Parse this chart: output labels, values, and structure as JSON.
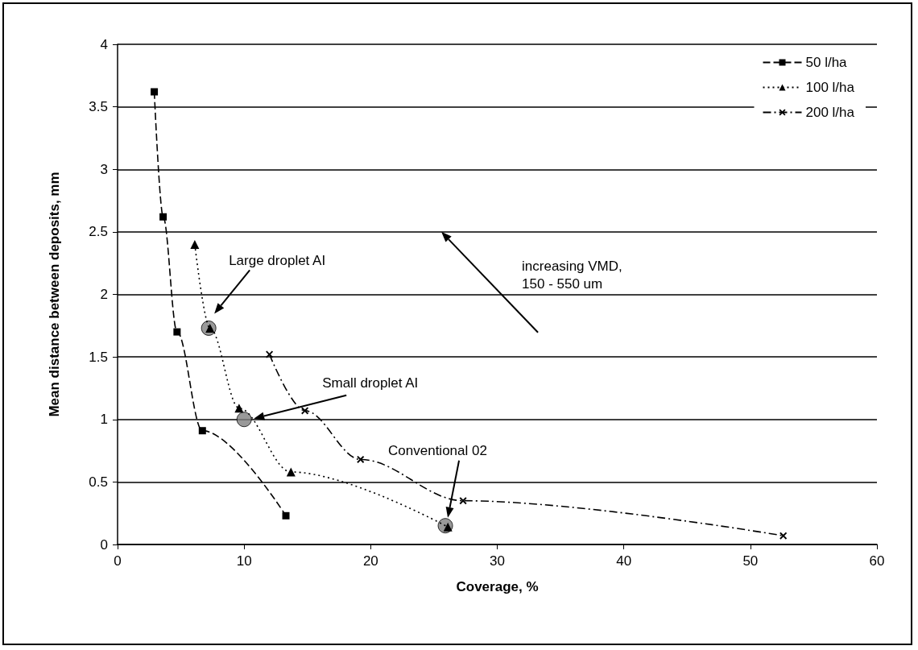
{
  "chart_data": {
    "type": "line",
    "xlabel": "Coverage, %",
    "ylabel": "Mean distance between deposits, mm",
    "xlim": [
      0,
      60
    ],
    "xticks": [
      0,
      10,
      20,
      30,
      40,
      50,
      60
    ],
    "ylim": [
      0,
      4
    ],
    "yticks": [
      0,
      0.5,
      1,
      1.5,
      2,
      2.5,
      3,
      3.5,
      4
    ],
    "grid": "y",
    "legend": "top right",
    "series": [
      {
        "name": "50 l/ha",
        "color": "#000000",
        "marker": "square",
        "line_style": "dashed",
        "x": [
          2.9,
          3.6,
          4.7,
          6.7,
          13.3
        ],
        "values": [
          3.62,
          2.62,
          1.7,
          0.91,
          0.23
        ]
      },
      {
        "name": "100 l/ha",
        "color": "#000000",
        "marker": "triangle",
        "line_style": "dotted",
        "x": [
          6.1,
          7.3,
          9.6,
          13.7,
          26.1
        ],
        "values": [
          2.4,
          1.73,
          1.09,
          0.58,
          0.14
        ]
      },
      {
        "name": "200 l/ha",
        "color": "#000000",
        "marker": "cross",
        "line_style": "dashdot",
        "x": [
          12.0,
          14.8,
          19.2,
          27.3,
          52.6
        ],
        "values": [
          1.52,
          1.07,
          0.68,
          0.35,
          0.07
        ]
      },
      {
        "type": "scatter",
        "color": "#808080",
        "marker": "circle",
        "x": [
          7.2,
          10.0,
          25.9
        ],
        "values": [
          1.73,
          1.0,
          0.15
        ]
      }
    ],
    "annotations": [
      "Large droplet AI",
      "Small droplet AI",
      "Conventional 02",
      "increasing VMD,\n150 - 550 um"
    ]
  }
}
